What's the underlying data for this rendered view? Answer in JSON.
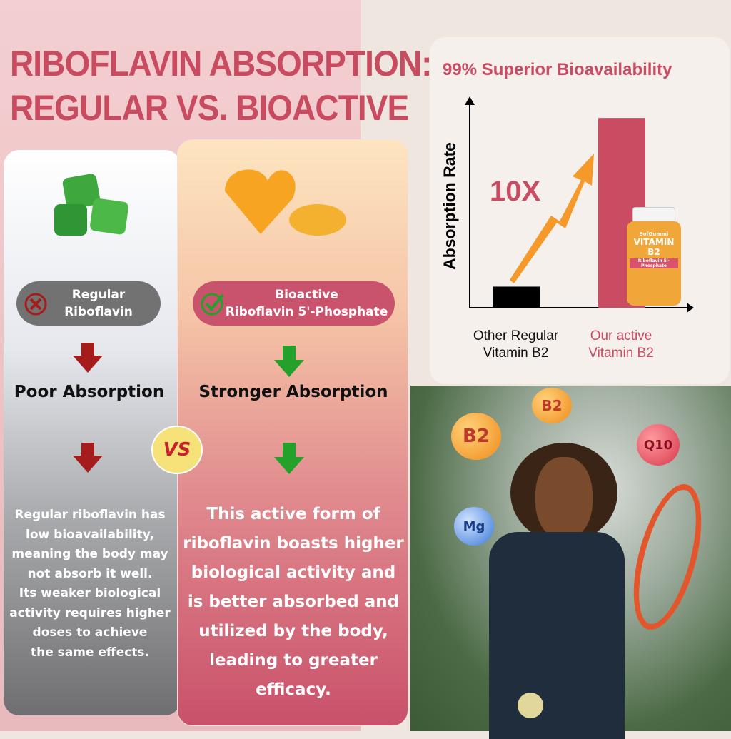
{
  "title": {
    "line1": "RIBOFLAVIN ABSORPTION:",
    "line2": "REGULAR VS. BIOACTIVE"
  },
  "regular": {
    "badge_line1": "Regular",
    "badge_line2": "Riboflavin",
    "result": "Poor Absorption",
    "description": [
      "Regular riboflavin has",
      "low bioavailability,",
      "meaning the body may",
      "not absorb it well.",
      "Its weaker biological",
      "activity requires higher",
      "doses to achieve",
      "the same effects."
    ],
    "icon": "x-circle-icon",
    "arrow_color": "#a51c1c"
  },
  "bioactive": {
    "badge_line1": "Bioactive",
    "badge_line2": "Riboflavin 5'-Phosphate",
    "result": "Stronger Absorption",
    "description": [
      "This active form of",
      "riboflavin boasts higher",
      "biological activity and",
      "is better absorbed and",
      "utilized by the body,",
      "leading to greater",
      "efficacy."
    ],
    "icon": "check-circle-icon",
    "arrow_color": "#23a12a"
  },
  "vs_label": "VS",
  "chart_data": {
    "type": "bar",
    "title": "99% Superior Bioavailability",
    "ylabel": "Absorption Rate",
    "annotation": "10X",
    "categories": [
      "Other Regular Vitamin B2",
      "Our active Vitamin B2"
    ],
    "category_lines": [
      [
        "Other Regular",
        "Vitamin B2"
      ],
      [
        "Our active",
        "Vitamin B2"
      ]
    ],
    "values": [
      1,
      9
    ],
    "colors": [
      "#000000",
      "#c94c63"
    ]
  },
  "product": {
    "brand": "SofGummi",
    "name": "VITAMIN B2",
    "sub": "Riboflavin 5'-Phosphate"
  },
  "bubbles": [
    "B2",
    "B2",
    "Q10",
    "Mg"
  ],
  "colors": {
    "accent": "#c84b60",
    "grey_badge": "#727272"
  }
}
